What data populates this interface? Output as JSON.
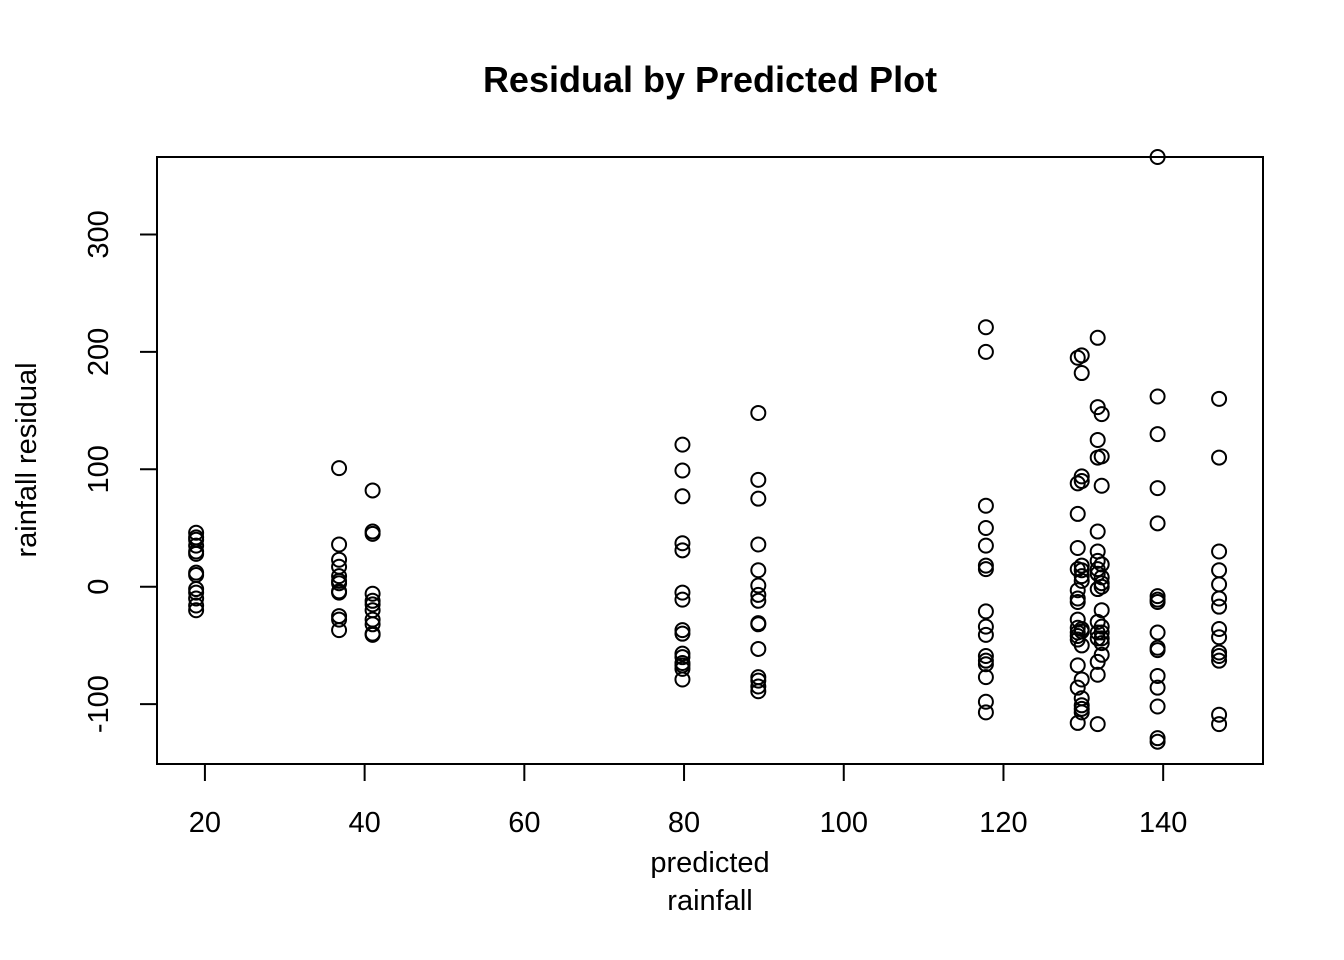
{
  "chart_data": {
    "type": "scatter",
    "title": "Residual by Predicted Plot",
    "xlabel_lines": [
      "predicted",
      "rainfall"
    ],
    "ylabel": "rainfall residual",
    "xlim": [
      14,
      152.5
    ],
    "ylim": [
      -151,
      366
    ],
    "x_ticks": [
      20,
      40,
      60,
      80,
      100,
      120,
      140
    ],
    "y_ticks": [
      -100,
      0,
      100,
      200,
      300
    ],
    "x_tick_labels": [
      "20",
      "40",
      "60",
      "80",
      "100",
      "120",
      "140"
    ],
    "y_tick_labels": [
      "-100",
      "0",
      "100",
      "200",
      "300"
    ],
    "grid": false,
    "legend": "none",
    "groups": [
      {
        "x": 18.9,
        "y": [
          46,
          42,
          40,
          35,
          30,
          28,
          12,
          10,
          -2,
          -5,
          -10,
          -16,
          -20
        ]
      },
      {
        "x": 36.8,
        "y": [
          101,
          36,
          23,
          17,
          9,
          5,
          3,
          -4,
          -5,
          -25,
          -28,
          -37
        ]
      },
      {
        "x": 41.0,
        "y": [
          82,
          47,
          45,
          -6,
          -12,
          -15,
          -20,
          -28,
          -32,
          -40,
          -41
        ]
      },
      {
        "x": 79.8,
        "y": [
          121,
          99,
          77,
          37,
          31,
          -5,
          -11,
          -37,
          -40,
          -57,
          -60,
          -65,
          -67,
          -70,
          -79
        ]
      },
      {
        "x": 89.3,
        "y": [
          148,
          91,
          75,
          36,
          14,
          1,
          -7,
          -12,
          -31,
          -32,
          -53,
          -77,
          -80,
          -85,
          -89
        ]
      },
      {
        "x": 117.8,
        "y": [
          221,
          200,
          69,
          50,
          35,
          18,
          15,
          -21,
          -34,
          -41,
          -59,
          -63,
          -66,
          -77,
          -98,
          -107
        ]
      },
      {
        "x": 129.3,
        "y": [
          195,
          88,
          62,
          33,
          15,
          -3,
          -10,
          -13,
          -28,
          -35,
          -39,
          -42,
          -45,
          -67,
          -86,
          -116
        ]
      },
      {
        "x": 129.8,
        "y": [
          197,
          182,
          94,
          90,
          18,
          14,
          9,
          5,
          -36,
          -38,
          -50,
          -79,
          -95,
          -101,
          -104,
          -107
        ]
      },
      {
        "x": 131.8,
        "y": [
          212,
          153,
          125,
          110,
          47,
          30,
          22,
          15,
          11,
          -2,
          -30,
          -39,
          -44,
          -64,
          -75,
          -117
        ]
      },
      {
        "x": 132.3,
        "y": [
          147,
          111,
          86,
          19,
          8,
          3,
          0,
          -20,
          -34,
          -39,
          -44,
          -48,
          -58
        ]
      },
      {
        "x": 139.3,
        "y": [
          366,
          162,
          130,
          84,
          54,
          -8,
          -11,
          -13,
          -39,
          -52,
          -54,
          -76,
          -86,
          -102,
          -129,
          -132
        ]
      },
      {
        "x": 147.0,
        "y": [
          160,
          110,
          30,
          14,
          2,
          -10,
          -17,
          -36,
          -43,
          -56,
          -59,
          -63,
          -109,
          -117
        ]
      }
    ]
  }
}
